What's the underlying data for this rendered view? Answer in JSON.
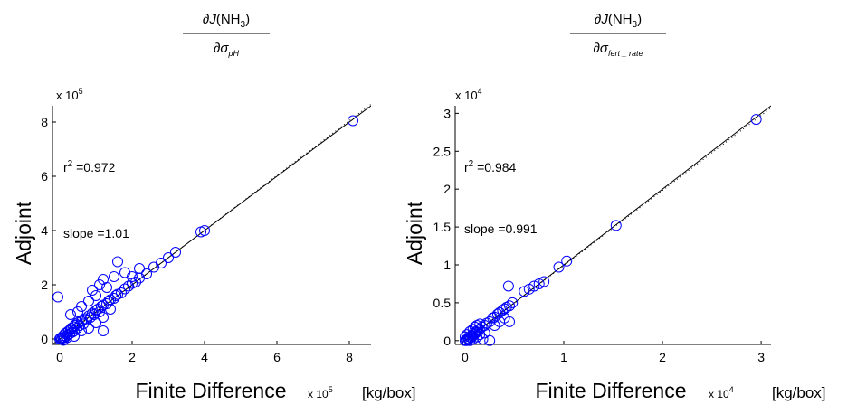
{
  "chart_data": [
    {
      "type": "scatter",
      "title_num": {
        "partial": "∂",
        "func": "J",
        "open": "(NH",
        "sub": "3",
        "close": ")"
      },
      "title_den": {
        "partial": "∂",
        "sigma": "σ",
        "sub": "pH"
      },
      "ylabel": "Adjoint",
      "xlabel": "Finite Difference",
      "units": "[kg/box]",
      "x_exponent_label": {
        "base": "x 10",
        "exp": "5"
      },
      "y_exponent_label": {
        "base": "x 10",
        "exp": "5"
      },
      "r2": {
        "r": "r",
        "sup": "2",
        "text": " =0.972"
      },
      "slope_text": "slope =1.01",
      "xlim": [
        -0.2,
        8.6
      ],
      "ylim": [
        -0.2,
        8.6
      ],
      "xticks": [
        0,
        2,
        4,
        6,
        8
      ],
      "yticks": [
        0,
        2,
        4,
        6,
        8
      ],
      "fit_line": {
        "slope": 1.01,
        "intercept": -0.03,
        "style": "dotted"
      },
      "one_to_one_line": {
        "style": "solid"
      },
      "marker_color": "#0000ff",
      "points": [
        [
          0,
          0
        ],
        [
          0.02,
          0.03
        ],
        [
          0.05,
          0.01
        ],
        [
          0.08,
          0.06
        ],
        [
          0.1,
          0.12
        ],
        [
          0.12,
          0.05
        ],
        [
          0.15,
          0.2
        ],
        [
          0.18,
          0.1
        ],
        [
          0.2,
          0.25
        ],
        [
          0.22,
          0.15
        ],
        [
          0.25,
          0.3
        ],
        [
          0.28,
          0.2
        ],
        [
          0.3,
          0.35
        ],
        [
          0.32,
          0.4
        ],
        [
          0.35,
          0.25
        ],
        [
          0.38,
          0.45
        ],
        [
          0.4,
          0.3
        ],
        [
          0.42,
          0.5
        ],
        [
          0.45,
          0.55
        ],
        [
          0.48,
          0.4
        ],
        [
          0.5,
          0.6
        ],
        [
          0.55,
          0.5
        ],
        [
          0.6,
          0.65
        ],
        [
          0.62,
          0.7
        ],
        [
          0.65,
          0.55
        ],
        [
          0.7,
          0.75
        ],
        [
          0.75,
          0.7
        ],
        [
          0.8,
          0.85
        ],
        [
          0.85,
          0.8
        ],
        [
          0.9,
          0.95
        ],
        [
          0.95,
          0.9
        ],
        [
          1.0,
          1.05
        ],
        [
          1.05,
          1.1
        ],
        [
          1.1,
          1.0
        ],
        [
          1.15,
          1.2
        ],
        [
          1.2,
          1.25
        ],
        [
          1.3,
          1.3
        ],
        [
          1.35,
          1.4
        ],
        [
          1.4,
          1.45
        ],
        [
          1.5,
          1.5
        ],
        [
          1.55,
          1.6
        ],
        [
          1.6,
          1.65
        ],
        [
          1.7,
          1.7
        ],
        [
          1.8,
          1.85
        ],
        [
          1.9,
          1.95
        ],
        [
          2.0,
          2.05
        ],
        [
          2.1,
          2.1
        ],
        [
          2.2,
          2.25
        ],
        [
          2.4,
          2.4
        ],
        [
          2.6,
          2.65
        ],
        [
          2.8,
          2.8
        ],
        [
          3.0,
          3.0
        ],
        [
          3.2,
          3.2
        ],
        [
          -0.05,
          1.55
        ],
        [
          0.3,
          0.9
        ],
        [
          0.5,
          1.0
        ],
        [
          0.6,
          1.2
        ],
        [
          0.8,
          1.4
        ],
        [
          0.9,
          1.8
        ],
        [
          1.0,
          1.6
        ],
        [
          1.1,
          2.0
        ],
        [
          1.2,
          2.2
        ],
        [
          1.3,
          1.9
        ],
        [
          1.5,
          2.3
        ],
        [
          1.6,
          2.85
        ],
        [
          1.8,
          2.45
        ],
        [
          2.0,
          2.3
        ],
        [
          2.2,
          2.6
        ],
        [
          1.4,
          1.1
        ],
        [
          1.2,
          0.8
        ],
        [
          1.0,
          0.6
        ],
        [
          1.2,
          0.3
        ],
        [
          0.8,
          0.4
        ],
        [
          0.6,
          0.3
        ],
        [
          0.4,
          0.1
        ],
        [
          0.2,
          0.05
        ],
        [
          0.1,
          -0.05
        ],
        [
          3.9,
          3.95
        ],
        [
          4.0,
          4.0
        ],
        [
          8.1,
          8.05
        ]
      ]
    },
    {
      "type": "scatter",
      "title_num": {
        "partial": "∂",
        "func": "J",
        "open": "(NH",
        "sub": "3",
        "close": ")"
      },
      "title_den": {
        "partial": "∂",
        "sigma": "σ",
        "sub": "fert _ rate"
      },
      "ylabel": "Adjoint",
      "xlabel": "Finite Difference",
      "units": "[kg/box]",
      "x_exponent_label": {
        "base": "x 10",
        "exp": "4"
      },
      "y_exponent_label": {
        "base": "x 10",
        "exp": "4"
      },
      "r2": {
        "r": "r",
        "sup": "2",
        "text": " =0.984"
      },
      "slope_text": "slope =0.991",
      "xlim": [
        -0.1,
        3.1
      ],
      "ylim": [
        -0.05,
        3.1
      ],
      "xticks": [
        0,
        1,
        2,
        3
      ],
      "xticklabels": [
        "0",
        "1",
        "2",
        "3"
      ],
      "yticks": [
        0,
        0.5,
        1,
        1.5,
        2,
        2.5,
        3
      ],
      "yticklabels": [
        "0",
        "0.5",
        "1",
        "1.5",
        "2",
        "2.5",
        "3"
      ],
      "fit_line": {
        "slope": 0.991,
        "intercept": 0.0,
        "style": "dotted"
      },
      "one_to_one_line": {
        "style": "solid"
      },
      "marker_color": "#0000ff",
      "points": [
        [
          0,
          0
        ],
        [
          0.01,
          0.01
        ],
        [
          0.02,
          0.0
        ],
        [
          0.03,
          0.03
        ],
        [
          0.04,
          0.02
        ],
        [
          0.05,
          0.05
        ],
        [
          0.06,
          0.04
        ],
        [
          0.07,
          0.07
        ],
        [
          0.08,
          0.06
        ],
        [
          0.09,
          0.09
        ],
        [
          0.1,
          0.1
        ],
        [
          0.11,
          0.12
        ],
        [
          0.12,
          0.11
        ],
        [
          0.13,
          0.14
        ],
        [
          0.15,
          0.15
        ],
        [
          0.17,
          0.18
        ],
        [
          0.2,
          0.2
        ],
        [
          0.22,
          0.23
        ],
        [
          0.25,
          0.25
        ],
        [
          0.28,
          0.3
        ],
        [
          0.3,
          0.31
        ],
        [
          0.33,
          0.35
        ],
        [
          0.35,
          0.37
        ],
        [
          0.38,
          0.4
        ],
        [
          0.4,
          0.42
        ],
        [
          0.42,
          0.44
        ],
        [
          0.45,
          0.46
        ],
        [
          0.48,
          0.5
        ],
        [
          0.0,
          0.05
        ],
        [
          0.02,
          0.08
        ],
        [
          0.05,
          0.12
        ],
        [
          0.08,
          0.15
        ],
        [
          0.1,
          0.18
        ],
        [
          0.12,
          0.2
        ],
        [
          0.15,
          0.22
        ],
        [
          0.05,
          0.0
        ],
        [
          0.08,
          0.02
        ],
        [
          0.12,
          0.05
        ],
        [
          0.15,
          0.08
        ],
        [
          0.2,
          0.1
        ],
        [
          0.18,
          0.02
        ],
        [
          0.25,
          0.0
        ],
        [
          0.3,
          0.2
        ],
        [
          0.35,
          0.25
        ],
        [
          0.4,
          0.3
        ],
        [
          0.45,
          0.25
        ],
        [
          0.44,
          0.72
        ],
        [
          0.6,
          0.65
        ],
        [
          0.65,
          0.68
        ],
        [
          0.7,
          0.72
        ],
        [
          0.75,
          0.75
        ],
        [
          0.8,
          0.78
        ],
        [
          0.95,
          0.97
        ],
        [
          1.03,
          1.05
        ],
        [
          1.53,
          1.52
        ],
        [
          2.95,
          2.92
        ]
      ]
    }
  ]
}
